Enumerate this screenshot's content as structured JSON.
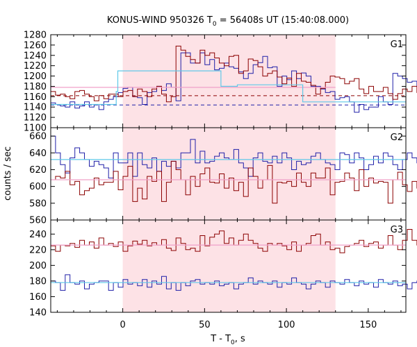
{
  "chart_data": {
    "type": "line",
    "title_prefix": "KONUS-WIND 950326 T",
    "title_sub": "0",
    "title_suffix": " = 56408s UT (15:40:08.000)",
    "xlabel_prefix": "T - T",
    "xlabel_sub": "0",
    "xlabel_suffix": ", s",
    "ylabel": "counts / sec",
    "xlim": [
      -44,
      173
    ],
    "xticks": [
      0,
      50,
      100,
      150
    ],
    "highlight_interval": [
      0,
      130
    ],
    "colors": {
      "red": "#8b0000",
      "blue": "#1f1fa8",
      "cyan": "#5ec8e8",
      "pink": "#f0a0c8",
      "highlight": "#fde2e6",
      "axis": "#000000",
      "grid": "#7a7a7a"
    },
    "panels": [
      {
        "label": "G1",
        "ylim": [
          1100,
          1280
        ],
        "yticks": [
          1100,
          1120,
          1140,
          1160,
          1180,
          1200,
          1220,
          1240,
          1260,
          1280
        ],
        "x_start": -44,
        "dt": 2.944,
        "red": [
          1170,
          1163,
          1165,
          1160,
          1156,
          1170,
          1172,
          1165,
          1160,
          1152,
          1162,
          1156,
          1165,
          1165,
          1160,
          1170,
          1172,
          1160,
          1175,
          1170,
          1160,
          1175,
          1180,
          1165,
          1150,
          1160,
          1258,
          1250,
          1238,
          1232,
          1225,
          1250,
          1240,
          1245,
          1235,
          1225,
          1220,
          1238,
          1240,
          1205,
          1210,
          1233,
          1230,
          1218,
          1200,
          1205,
          1210,
          1198,
          1185,
          1196,
          1180,
          1205,
          1190,
          1188,
          1182,
          1165,
          1176,
          1188,
          1200,
          1198,
          1195,
          1185,
          1190,
          1195,
          1175,
          1166,
          1180,
          1170,
          1170,
          1178,
          1166,
          1155,
          1166,
          1175,
          1170,
          1180,
          1168,
          1165,
          1165,
          1162,
          1160,
          1164,
          1158,
          1160,
          1150,
          1158,
          1155,
          1152,
          1145,
          1160,
          1148,
          1150,
          1145,
          1160,
          1148,
          1150,
          1150,
          1160,
          1158,
          1140,
          1155,
          1145,
          1150,
          1155,
          1140,
          1150,
          1148,
          1145,
          1158,
          1162,
          1160,
          1150,
          1145,
          1160,
          1165,
          1166,
          1170,
          1175,
          1172,
          1165,
          1175,
          1170,
          1170,
          1175,
          1178
        ],
        "blue": [
          1148,
          1145,
          1142,
          1140,
          1150,
          1138,
          1142,
          1150,
          1140,
          1145,
          1135,
          1150,
          1155,
          1160,
          1168,
          1176,
          1178,
          1160,
          1158,
          1145,
          1168,
          1170,
          1180,
          1172,
          1185,
          1178,
          1152,
          1245,
          1245,
          1225,
          1225,
          1245,
          1222,
          1232,
          1212,
          1215,
          1225,
          1218,
          1215,
          1208,
          1195,
          1205,
          1222,
          1226,
          1238,
          1216,
          1218,
          1180,
          1200,
          1193,
          1210,
          1195,
          1206,
          1200,
          1180,
          1180,
          1175,
          1168,
          1170,
          1155,
          1158,
          1160,
          1150,
          1130,
          1145,
          1135,
          1140,
          1140,
          1160,
          1150,
          1145,
          1205,
          1200,
          1195,
          1188,
          1190,
          1180,
          1215,
          1200,
          1180,
          1192,
          1188,
          1170,
          1160,
          1154,
          1148,
          1180,
          1152,
          1152,
          1160,
          1140,
          1132,
          1180,
          1158,
          1160,
          1170,
          1142,
          1145,
          1138,
          1140,
          1125,
          1132,
          1148,
          1155,
          1140,
          1132,
          1142,
          1138,
          1162,
          1150,
          1158,
          1142,
          1155,
          1145,
          1130,
          1152,
          1145,
          1160,
          1148,
          1158,
          1168,
          1170,
          1165,
          1175,
          1172
        ],
        "cyan_steps": [
          [
            -44,
            1145
          ],
          [
            -4,
            1145
          ],
          [
            -4,
            1170
          ],
          [
            -3,
            1170
          ],
          [
            -3,
            1210
          ],
          [
            60,
            1210
          ],
          [
            60,
            1180
          ],
          [
            70,
            1180
          ],
          [
            70,
            1183
          ],
          [
            110,
            1183
          ],
          [
            110,
            1150
          ],
          [
            173,
            1150
          ]
        ],
        "pink_steps": [
          [
            -44,
            1178
          ],
          [
            130,
            1178
          ]
        ],
        "red_dash": 1162,
        "blue_dash": 1144
      },
      {
        "label": "G2",
        "ylim": [
          560,
          670
        ],
        "yticks": [
          560,
          580,
          600,
          620,
          640,
          660
        ],
        "x_start": -44,
        "dt": 2.944,
        "red": [
          608,
          612,
          610,
          618,
          602,
          606,
          590,
          595,
          598,
          610,
          602,
          605,
          605,
          618,
          596,
          612,
          624,
          582,
          598,
          585,
          612,
          606,
          618,
          582,
          605,
          630,
          620,
          608,
          590,
          612,
          600,
          615,
          622,
          605,
          604,
          615,
          598,
          610,
          595,
          605,
          588,
          622,
          612,
          598,
          608,
          625,
          580,
          605,
          604,
          606,
          600,
          616,
          605,
          600,
          616,
          610,
          610,
          622,
          590,
          605,
          606,
          616,
          610,
          595,
          620,
          600,
          610,
          604,
          606,
          605,
          580,
          608,
          617,
          602,
          594,
          606,
          598,
          585,
          622,
          605,
          610,
          605,
          608,
          606,
          612,
          610,
          604,
          606,
          600,
          610,
          610,
          605,
          612,
          620,
          615,
          600,
          612,
          618,
          604,
          616,
          624,
          612,
          598,
          606,
          630,
          622,
          608,
          612,
          614,
          618,
          612,
          610,
          602,
          612,
          618,
          608,
          612,
          612,
          608,
          610,
          606,
          612,
          610,
          606,
          608
        ],
        "blue": [
          660,
          640,
          626,
          616,
          634,
          646,
          640,
          632,
          624,
          630,
          626,
          622,
          610,
          640,
          628,
          628,
          640,
          612,
          640,
          626,
          622,
          634,
          618,
          630,
          624,
          630,
          622,
          640,
          640,
          656,
          628,
          642,
          628,
          630,
          636,
          640,
          634,
          632,
          644,
          628,
          622,
          612,
          634,
          640,
          630,
          628,
          636,
          628,
          640,
          634,
          620,
          630,
          626,
          628,
          636,
          640,
          632,
          628,
          626,
          620,
          640,
          638,
          628,
          640,
          634,
          620,
          626,
          636,
          628,
          640,
          636,
          626,
          620,
          632,
          640,
          634,
          628,
          628,
          642,
          626,
          620,
          630,
          634,
          628,
          636,
          640,
          630,
          624,
          632,
          632,
          638,
          630,
          626,
          640,
          634,
          630,
          628,
          636,
          632,
          628,
          640,
          634,
          626,
          632,
          636,
          630,
          628,
          632,
          634,
          640,
          636,
          628,
          630,
          632,
          636,
          634,
          632,
          628,
          630,
          636,
          638,
          634,
          632,
          630,
          634
        ],
        "cyan_steps": [
          [
            -44,
            632
          ],
          [
            173,
            632
          ]
        ],
        "pink_steps": [
          [
            -44,
            608
          ],
          [
            173,
            608
          ]
        ]
      },
      {
        "label": "G3",
        "ylim": [
          140,
          258
        ],
        "yticks": [
          140,
          160,
          180,
          200,
          220,
          240
        ],
        "x_start": -44,
        "dt": 2.944,
        "red": [
          225,
          218,
          226,
          225,
          228,
          223,
          232,
          226,
          230,
          222,
          235,
          226,
          228,
          224,
          230,
          218,
          225,
          231,
          227,
          232,
          225,
          229,
          226,
          233,
          222,
          219,
          235,
          228,
          220,
          222,
          218,
          238,
          225,
          236,
          240,
          244,
          228,
          235,
          226,
          232,
          240,
          232,
          228,
          222,
          218,
          228,
          226,
          228,
          225,
          220,
          230,
          218,
          226,
          228,
          238,
          240,
          226,
          230,
          220,
          222,
          216,
          224,
          226,
          228,
          232,
          224,
          228,
          230,
          222,
          226,
          238,
          226,
          220,
          232,
          246,
          232,
          226,
          220,
          238,
          230,
          226,
          232,
          224,
          222,
          234,
          228,
          232,
          226,
          230,
          240,
          226,
          228,
          236,
          234,
          230,
          222,
          226,
          234,
          222,
          240,
          232,
          226,
          222,
          228,
          224,
          222,
          230,
          232,
          226,
          228,
          224,
          222,
          228,
          220,
          226,
          234,
          228,
          236,
          230,
          232,
          234,
          226,
          230,
          226,
          232
        ],
        "blue": [
          180,
          178,
          168,
          188,
          178,
          176,
          180,
          170,
          176,
          178,
          180,
          180,
          168,
          178,
          172,
          182,
          176,
          178,
          174,
          182,
          172,
          180,
          176,
          186,
          170,
          178,
          168,
          178,
          174,
          180,
          182,
          176,
          178,
          176,
          180,
          174,
          176,
          178,
          170,
          176,
          178,
          184,
          176,
          180,
          178,
          176,
          180,
          172,
          178,
          176,
          184,
          178,
          176,
          170,
          176,
          180,
          178,
          172,
          180,
          178,
          176,
          182,
          178,
          174,
          180,
          176,
          178,
          172,
          182,
          178,
          176,
          180,
          174,
          176,
          170,
          178,
          180,
          172,
          176,
          182,
          178,
          174,
          180,
          176,
          178,
          172,
          178,
          182,
          176,
          180,
          174,
          178,
          180,
          176,
          178,
          174,
          184,
          178,
          176,
          180,
          186,
          178,
          172,
          176,
          180,
          182,
          178,
          176,
          174,
          180,
          178,
          176,
          182,
          174,
          178,
          180,
          176,
          182,
          178,
          176,
          172,
          178,
          180,
          176,
          178
        ],
        "cyan_steps": [
          [
            -44,
            178
          ],
          [
            173,
            178
          ]
        ],
        "pink_steps": [
          [
            -44,
            226
          ],
          [
            173,
            226
          ]
        ]
      }
    ]
  }
}
